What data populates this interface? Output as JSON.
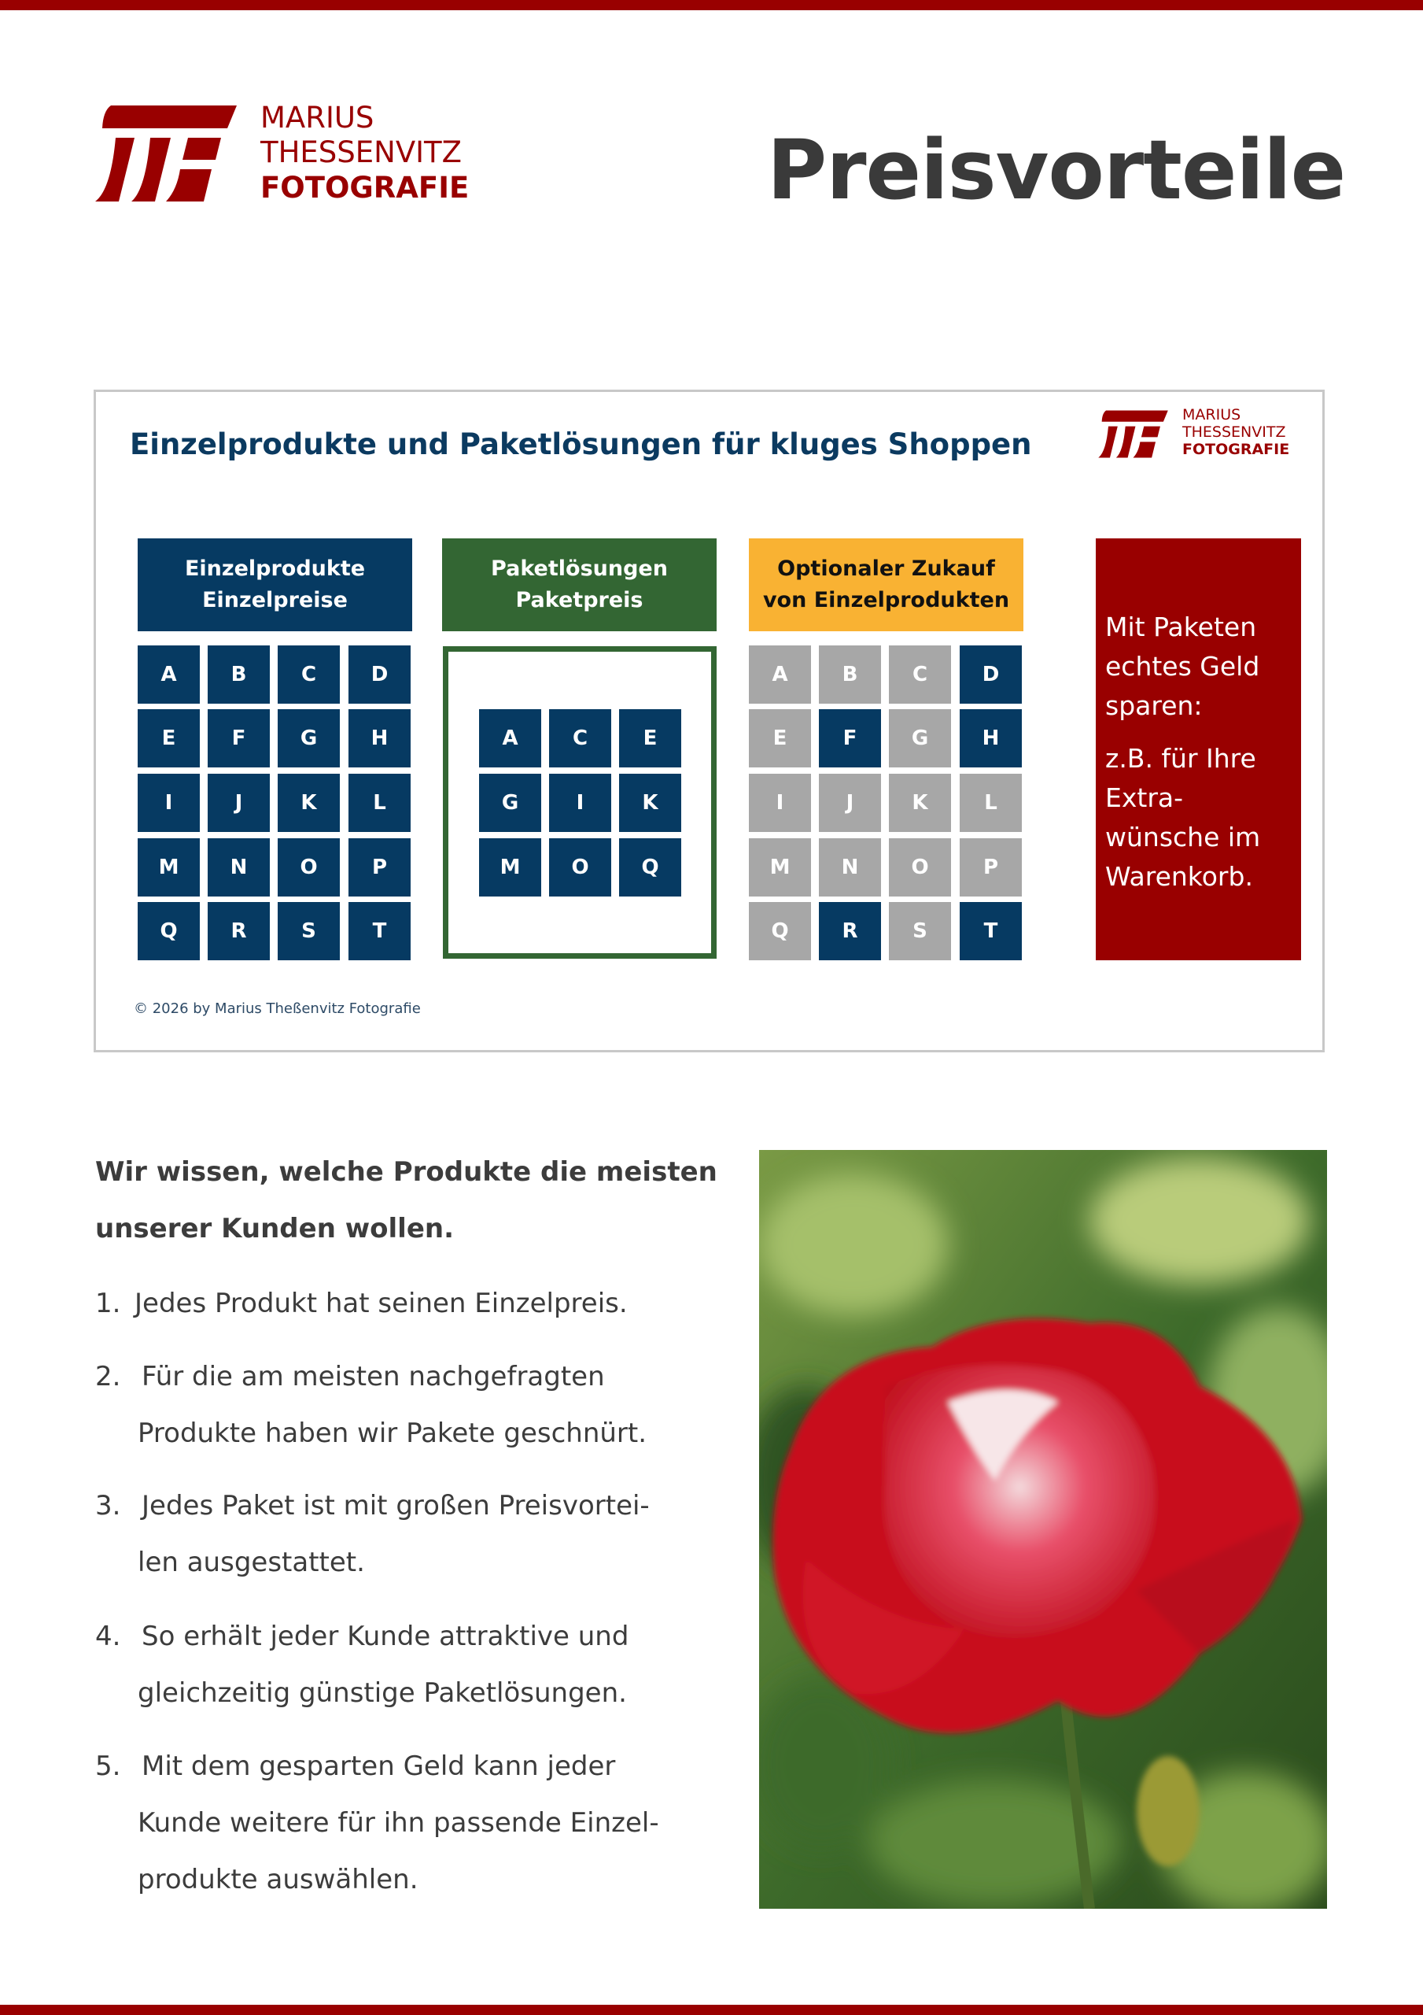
{
  "brand": {
    "line1": "MARIUS",
    "line2": "THESSENVITZ",
    "line3": "FOTOGRAFIE",
    "color": "#990000"
  },
  "header": {
    "title": "Preisvorteile"
  },
  "infographic": {
    "title": "Einzelprodukte und Paketlösungen für kluges Shoppen",
    "columns": [
      {
        "title_lines": [
          "Einzelprodukte",
          "Einzelpreise"
        ],
        "color": "#063a62"
      },
      {
        "title_lines": [
          "Paketlösungen",
          "Paketpreis"
        ],
        "color": "#336633"
      },
      {
        "title_lines": [
          "Optionaler Zukauf",
          "von Einzelprodukten"
        ],
        "color": "#f9b233"
      }
    ],
    "single_products": [
      "A",
      "B",
      "C",
      "D",
      "E",
      "F",
      "G",
      "H",
      "I",
      "J",
      "K",
      "L",
      "M",
      "N",
      "O",
      "P",
      "Q",
      "R",
      "S",
      "T"
    ],
    "package_products": [
      "A",
      "C",
      "E",
      "G",
      "I",
      "K",
      "M",
      "O",
      "Q"
    ],
    "optional_products": [
      "A",
      "B",
      "C",
      "D",
      "E",
      "F",
      "G",
      "H",
      "I",
      "J",
      "K",
      "L",
      "M",
      "N",
      "O",
      "P",
      "Q",
      "R",
      "S",
      "T"
    ],
    "optional_highlighted": [
      "D",
      "F",
      "H",
      "R",
      "T"
    ],
    "highlight_color": "#063a62",
    "inactive_color": "#a7a7a7",
    "savings_box": {
      "lines": [
        "Mit Paketen",
        "echtes Geld",
        "sparen:",
        "z.B. für Ihre",
        "Extra-",
        "wünsche im",
        "Warenkorb."
      ],
      "color": "#990000"
    },
    "copyright": "© 2026 by Marius Theßenvitz Fotografie"
  },
  "body": {
    "intro_lines": [
      "Wir wissen, welche Produkte die meisten",
      "unserer Kunden wollen."
    ],
    "list": [
      {
        "number": "1.",
        "lines": [
          "Jedes Produkt hat seinen Einzelpreis."
        ]
      },
      {
        "number": "2.",
        "lines": [
          "Für die am meisten nachgefragten",
          "Produkte haben wir Pakete geschnürt."
        ]
      },
      {
        "number": "3.",
        "lines": [
          "Jedes Paket ist mit großen Preisvortei-",
          "len ausgestattet."
        ]
      },
      {
        "number": "4.",
        "lines": [
          "So erhält jeder Kunde attraktive und",
          "gleichzeitig günstige Paketlösungen."
        ]
      },
      {
        "number": "5.",
        "lines": [
          "Mit dem gesparten Geld kann jeder",
          "Kunde weitere für ihn passende Einzel-",
          "produkte auswählen."
        ]
      }
    ]
  },
  "photo": {
    "subject": "red-rose-with-water-drops"
  }
}
